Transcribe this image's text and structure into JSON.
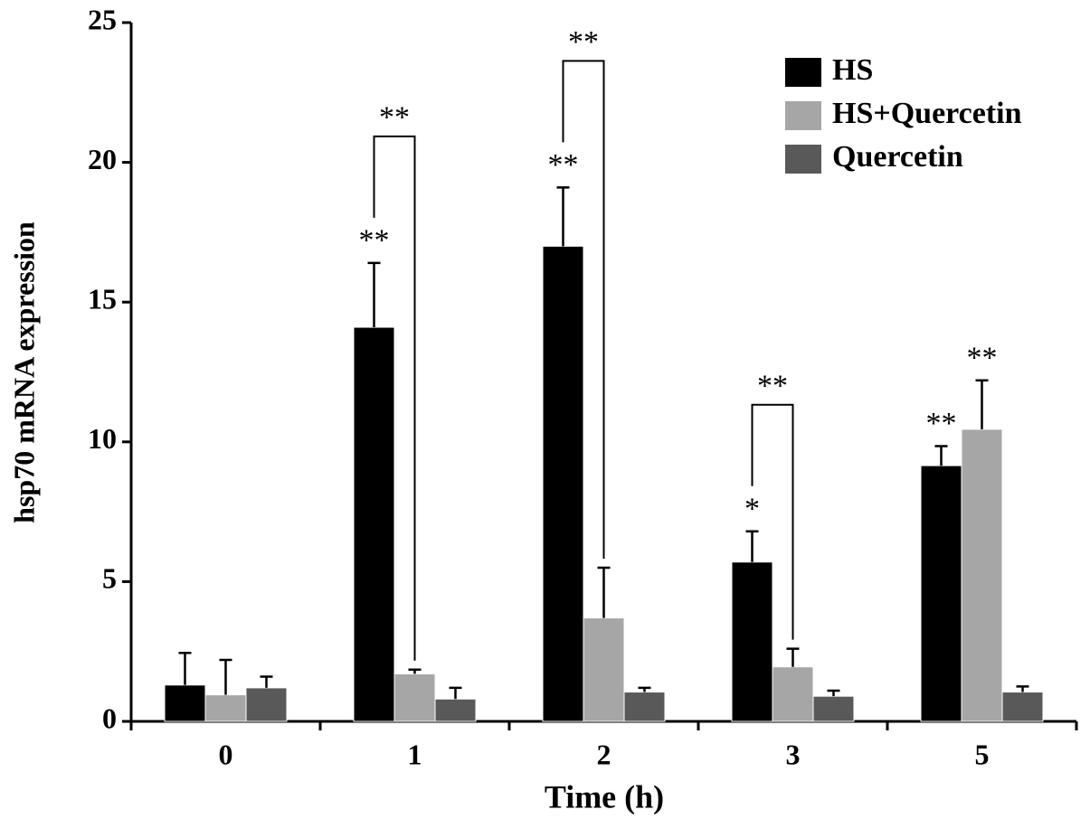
{
  "chart_data": {
    "type": "bar",
    "x_label": "Time (h)",
    "y_label": "hsp70 mRNA expression",
    "categories": [
      "0",
      "1",
      "2",
      "3",
      "5"
    ],
    "series": [
      {
        "name": "HS",
        "color": "#000000",
        "values": [
          1.3,
          14.1,
          17.0,
          5.7,
          9.15
        ],
        "errors": [
          1.15,
          2.3,
          2.1,
          1.1,
          0.7
        ],
        "annotations": [
          null,
          "**",
          "**",
          "*",
          "**"
        ]
      },
      {
        "name": "HS+Quercetin",
        "color": "#a6a6a6",
        "values": [
          0.95,
          1.7,
          3.7,
          1.95,
          10.45
        ],
        "errors": [
          1.25,
          0.15,
          1.8,
          0.65,
          1.75
        ],
        "annotations": [
          null,
          null,
          null,
          null,
          "**"
        ]
      },
      {
        "name": "Quercetin",
        "color": "#595959",
        "values": [
          1.2,
          0.8,
          1.05,
          0.9,
          1.05
        ],
        "errors": [
          0.4,
          0.4,
          0.15,
          0.2,
          0.2
        ],
        "annotations": [
          null,
          null,
          null,
          null,
          null
        ]
      }
    ],
    "brackets": [
      null,
      "**",
      "**",
      "**",
      null
    ],
    "ylim": [
      0,
      25
    ],
    "yticks": [
      0,
      5,
      10,
      15,
      20,
      25
    ],
    "legend": "upper right"
  }
}
